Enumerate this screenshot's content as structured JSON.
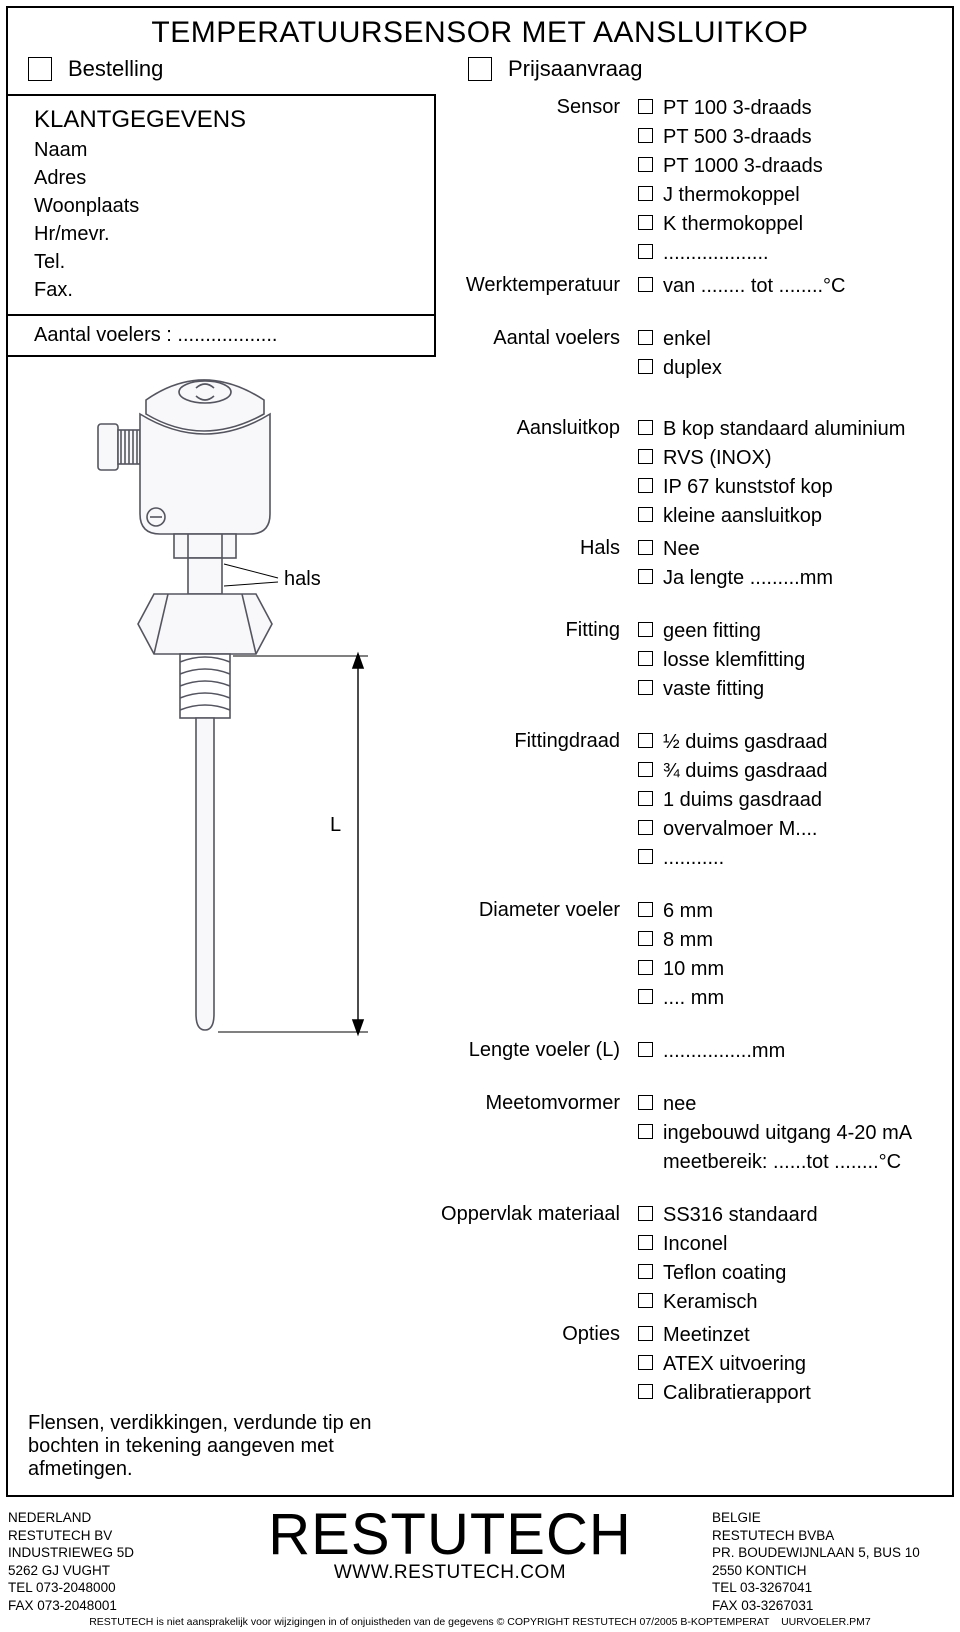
{
  "title": "TEMPERATUURSENSOR MET AANSLUITKOP",
  "request": {
    "order": "Bestelling",
    "quote": "Prijsaanvraag"
  },
  "klant": {
    "heading": "KLANTGEGEVENS",
    "fields": [
      "Naam",
      "Adres",
      "Woonplaats",
      "Hr/mevr.",
      "Tel.",
      "Fax."
    ],
    "count": "Aantal voelers : .................."
  },
  "diagram": {
    "hals": "hals",
    "L": "L"
  },
  "specs": [
    {
      "label": "Sensor",
      "opts": [
        "PT 100 3-draads",
        "PT 500 3-draads",
        "PT 1000 3-draads",
        "J thermokoppel",
        "K thermokoppel",
        "..................."
      ]
    },
    {
      "label": "Werktemperatuur",
      "opts": [
        "van ........ tot ........°C"
      ]
    },
    {
      "label": "Aantal voelers",
      "opts": [
        "enkel",
        "duplex"
      ]
    },
    {
      "label": "Aansluitkop",
      "opts": [
        "B kop standaard aluminium",
        "RVS (INOX)",
        "IP 67 kunststof kop",
        "kleine aansluitkop"
      ]
    },
    {
      "label": "Hals",
      "opts": [
        "Nee",
        "Ja lengte .........mm"
      ]
    },
    {
      "label": "Fitting",
      "opts": [
        "geen fitting",
        "losse klemfitting",
        "vaste fitting"
      ]
    },
    {
      "label": "Fittingdraad",
      "opts": [
        "½ duims gasdraad",
        "¾ duims gasdraad",
        "1 duims gasdraad",
        "overvalmoer M....",
        "..........."
      ]
    },
    {
      "label": "Diameter voeler",
      "opts": [
        "6 mm",
        "8 mm",
        "10 mm",
        ".... mm"
      ]
    },
    {
      "label": "Lengte voeler (L)",
      "opts": [
        "................mm"
      ]
    },
    {
      "label": "Meetomvormer",
      "opts": [
        "nee",
        "ingebouwd uitgang 4-20 mA"
      ],
      "extra": "meetbereik: ......tot ........°C"
    },
    {
      "label": "Oppervlak materiaal",
      "opts": [
        "SS316 standaard",
        "Inconel",
        "Teflon coating",
        "Keramisch"
      ]
    },
    {
      "label": "Opties",
      "opts": [
        "Meetinzet",
        "ATEX uitvoering",
        "Calibratierapport"
      ]
    }
  ],
  "spec_gaps": {
    "2": 24,
    "3": 32,
    "5": 24,
    "6": 24,
    "7": 24,
    "8": 24,
    "9": 24,
    "10": 24
  },
  "bottom_note": "Flensen, verdikkingen, verdunde tip en bochten in tekening aangeven met afmetingen.",
  "footer": {
    "left": [
      "NEDERLAND",
      "RESTUTECH BV",
      "INDUSTRIEWEG 5D",
      "5262 GJ VUGHT",
      "TEL 073-2048000",
      "FAX 073-2048001"
    ],
    "brand": "RESTUTECH",
    "url": "WWW.RESTUTECH.COM",
    "right": [
      "BELGIE",
      "RESTUTECH BVBA",
      "PR. BOUDEWIJNLAAN 5, BUS 10",
      "2550 KONTICH",
      "TEL 03-3267041",
      "FAX 03-3267031"
    ]
  },
  "disclaimer": "RESTUTECH is niet aansprakelijk voor wijzigingen in of onjuistheden van de gegevens © COPYRIGHT RESTUTECH 07/2005 B-KOPTEMPERAT    UURVOELER.PM7",
  "svg": {
    "stroke": "#555560",
    "fill": "#f8f8fa"
  }
}
